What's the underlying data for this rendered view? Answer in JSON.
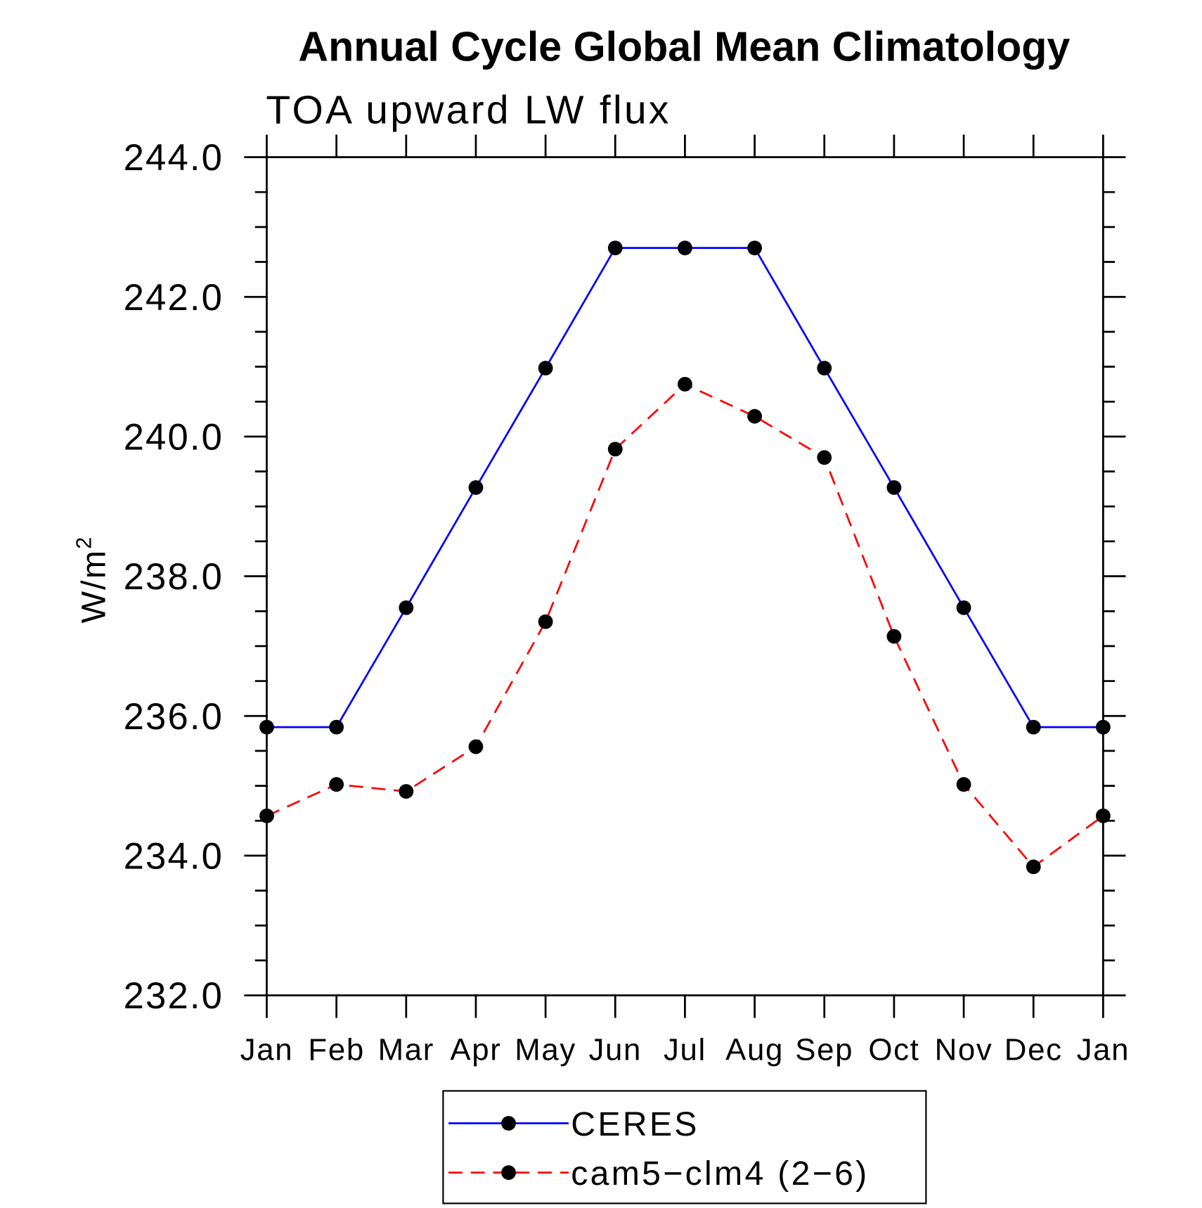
{
  "chart_data": {
    "type": "line",
    "title": "Annual Cycle Global Mean Climatology",
    "subtitle": "TOA upward LW flux",
    "xlabel": "",
    "ylabel": {
      "unit": "W/m",
      "exponent": "2"
    },
    "categories": [
      "Jan",
      "Feb",
      "Mar",
      "Apr",
      "May",
      "Jun",
      "Jul",
      "Aug",
      "Sep",
      "Oct",
      "Nov",
      "Dec",
      "Jan"
    ],
    "ylim": [
      232,
      244
    ],
    "yticks": [
      244,
      242,
      240,
      238,
      236,
      234,
      232
    ],
    "ytick_labels": [
      "244.0",
      "242.0",
      "240.0",
      "238.0",
      "236.0",
      "234.0",
      "232.0"
    ],
    "yminor_step": 0.5,
    "grid": false,
    "legend_position": "bottom-center",
    "marker_color": "#000000",
    "axis_color": "#000000",
    "series": [
      {
        "name": "CERES",
        "color": "#0000ff",
        "line_style": "solid",
        "marker": "filled-circle",
        "values": [
          235.84,
          235.84,
          237.55,
          239.27,
          240.98,
          242.7,
          242.7,
          242.7,
          240.98,
          239.27,
          237.55,
          235.84,
          235.84
        ]
      },
      {
        "name": "cam5−clm4 (2−6)",
        "color": "#ff0000",
        "line_style": "dashed",
        "marker": "filled-circle",
        "values": [
          234.57,
          235.02,
          234.92,
          235.56,
          237.35,
          239.82,
          240.75,
          240.29,
          239.7,
          237.14,
          235.02,
          233.84,
          234.57
        ]
      }
    ]
  }
}
